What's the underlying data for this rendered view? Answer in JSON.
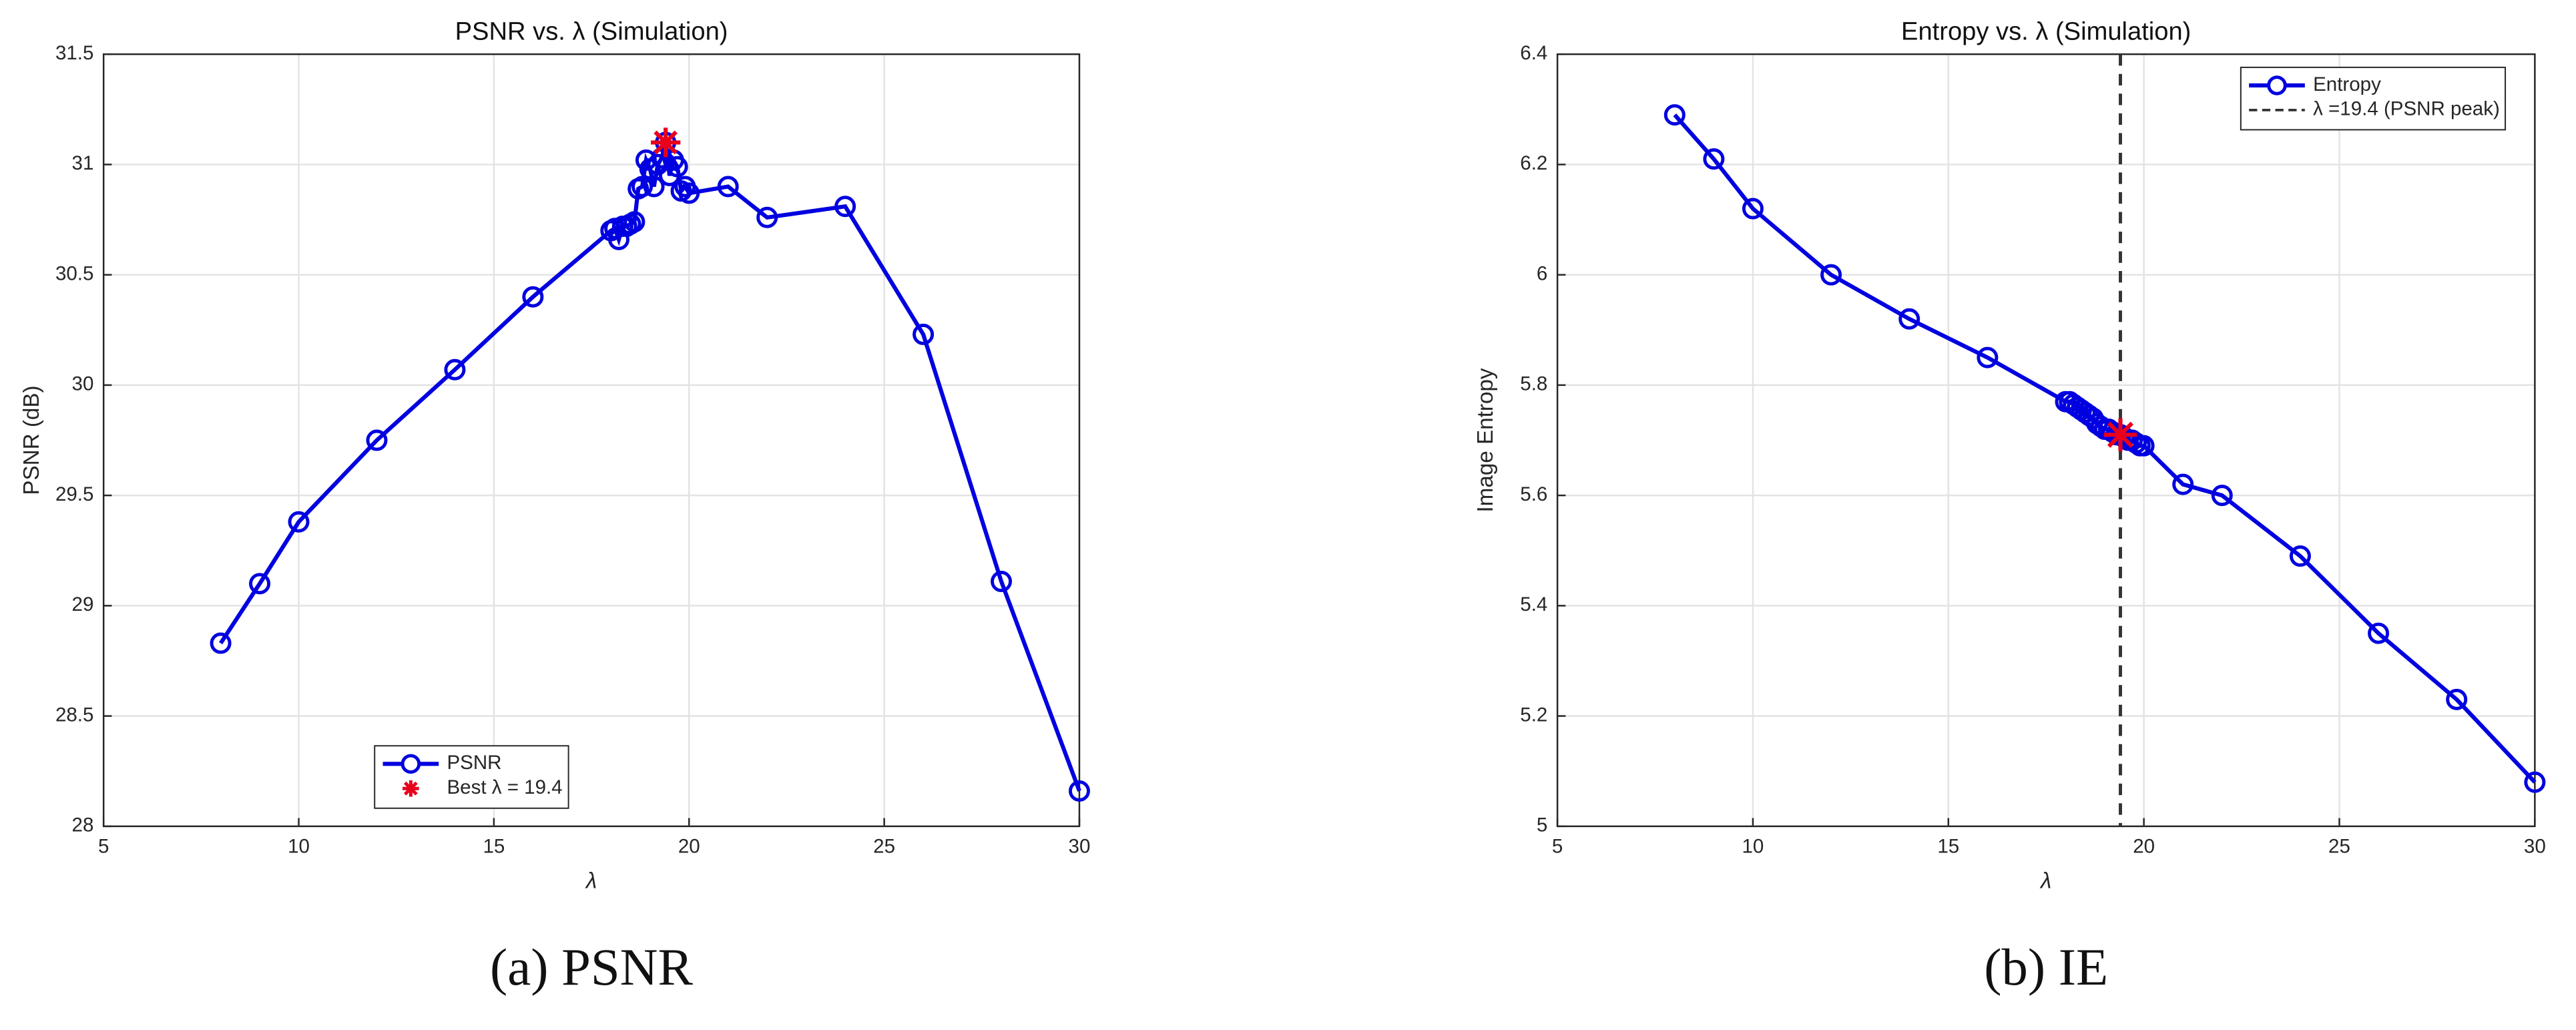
{
  "chart_data": [
    {
      "type": "line",
      "title": "PSNR vs. λ (Simulation)",
      "xlabel": "λ",
      "ylabel": "PSNR (dB)",
      "caption": "(a) PSNR",
      "x": [
        8,
        9,
        10,
        12,
        14,
        16,
        18,
        18.1,
        18.2,
        18.3,
        18.4,
        18.5,
        18.6,
        18.7,
        18.8,
        18.9,
        19,
        19.1,
        19.2,
        19.3,
        19.4,
        19.5,
        19.6,
        19.7,
        19.8,
        19.9,
        20,
        21,
        22,
        24,
        26,
        28,
        30
      ],
      "series": [
        {
          "name": "PSNR",
          "color": "#0000e0",
          "values": [
            28.83,
            29.1,
            29.38,
            29.75,
            30.07,
            30.4,
            30.7,
            30.71,
            30.66,
            30.72,
            30.72,
            30.73,
            30.74,
            30.89,
            30.9,
            31.02,
            30.98,
            30.9,
            31,
            31.03,
            31.1,
            30.95,
            31.02,
            30.99,
            30.88,
            30.9,
            30.87,
            30.9,
            30.76,
            30.81,
            30.23,
            29.11,
            28.16
          ]
        },
        {
          "name": "Best λ = 19.4",
          "color": "#e8001c",
          "marker": "star",
          "x": [
            19.4
          ],
          "values": [
            31.1
          ]
        }
      ],
      "xlim": [
        5,
        30
      ],
      "xticks": [
        5,
        10,
        15,
        20,
        25,
        30
      ],
      "ylim": [
        28,
        31.5
      ],
      "yticks": [
        28,
        28.5,
        29,
        29.5,
        30,
        30.5,
        31,
        31.5
      ],
      "grid": true,
      "legend": "lower center"
    },
    {
      "type": "line",
      "title": "Entropy vs. λ (Simulation)",
      "xlabel": "λ",
      "ylabel": "Image Entropy",
      "caption": "(b) IE",
      "x": [
        8,
        9,
        10,
        12,
        14,
        16,
        18,
        18.1,
        18.2,
        18.3,
        18.4,
        18.5,
        18.6,
        18.7,
        18.8,
        18.9,
        19,
        19.1,
        19.2,
        19.3,
        19.4,
        19.5,
        19.6,
        19.7,
        19.8,
        19.9,
        20,
        21,
        22,
        24,
        26,
        28,
        30
      ],
      "series": [
        {
          "name": "Entropy",
          "color": "#0000e0",
          "values": [
            6.29,
            6.21,
            6.12,
            6,
            5.92,
            5.85,
            5.77,
            5.77,
            5.765,
            5.76,
            5.755,
            5.75,
            5.745,
            5.74,
            5.73,
            5.725,
            5.72,
            5.72,
            5.715,
            5.71,
            5.71,
            5.705,
            5.7,
            5.7,
            5.695,
            5.69,
            5.69,
            5.62,
            5.6,
            5.49,
            5.35,
            5.23,
            5.08
          ]
        },
        {
          "name": "λ =19.4 (PSNR peak)",
          "color": "#333333",
          "vline": 19.4
        }
      ],
      "highlight": {
        "x": 19.4,
        "y": 5.71,
        "color": "#e8001c"
      },
      "xlim": [
        5,
        30
      ],
      "xticks": [
        5,
        10,
        15,
        20,
        25,
        30
      ],
      "ylim": [
        5,
        6.4
      ],
      "yticks": [
        5,
        5.2,
        5.4,
        5.6,
        5.8,
        6,
        6.2,
        6.4
      ],
      "grid": true,
      "legend": "upper right"
    }
  ]
}
